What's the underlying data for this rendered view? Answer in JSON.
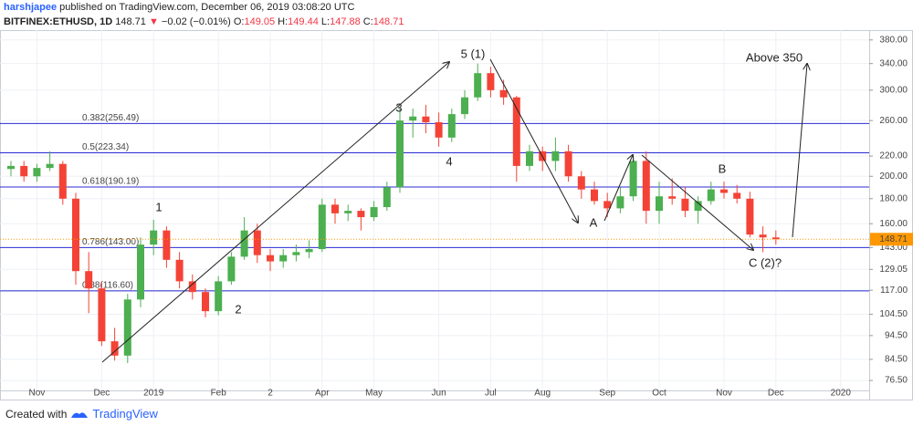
{
  "header": {
    "author": "harshjapee",
    "published": "published on TradingView.com, December 06, 2019 03:08:20 UTC",
    "symbol": "BITFINEX:ETHUSD, 1D",
    "last": "148.71",
    "direction": "▼",
    "change": "−0.02 (−0.01%)",
    "ohlc": [
      {
        "label": "O:",
        "value": "149.05"
      },
      {
        "label": "H:",
        "value": "149.44"
      },
      {
        "label": "L:",
        "value": "147.88"
      },
      {
        "label": "C:",
        "value": "148.71"
      }
    ]
  },
  "footer": {
    "created": "Created with",
    "brand": "TradingView"
  },
  "chart_data": {
    "type": "candlestick",
    "log_scale": true,
    "grid": true,
    "up_color": "#4caf50",
    "down_color": "#f44336",
    "level_color": "#2b2bd6",
    "last_price": {
      "value": 148.71,
      "label": "148.71",
      "color": "#ff9800"
    },
    "ylim": [
      73,
      398
    ],
    "yticks": [
      {
        "value": 380,
        "label": "380.00"
      },
      {
        "value": 340,
        "label": "340.00"
      },
      {
        "value": 300,
        "label": "300.00"
      },
      {
        "value": 260,
        "label": "260.00"
      },
      {
        "value": 220,
        "label": "220.00"
      },
      {
        "value": 200,
        "label": "200.00"
      },
      {
        "value": 180,
        "label": "180.00"
      },
      {
        "value": 160,
        "label": "160.00"
      },
      {
        "value": 143,
        "label": "143.00"
      },
      {
        "value": 129.05,
        "label": "129.05"
      },
      {
        "value": 117,
        "label": "117.00"
      },
      {
        "value": 104.5,
        "label": "104.50"
      },
      {
        "value": 94.5,
        "label": "94.50"
      },
      {
        "value": 84.5,
        "label": "84.50"
      },
      {
        "value": 76.5,
        "label": "76.50"
      }
    ],
    "levels": [
      {
        "value": 256.49,
        "label": "0.382(256.49)"
      },
      {
        "value": 223.34,
        "label": "0.5(223.34)"
      },
      {
        "value": 190.19,
        "label": "0.618(190.19)"
      },
      {
        "value": 143.0,
        "label": "0.786(143.00)"
      },
      {
        "value": 116.6,
        "label": "0.88(116.60)"
      }
    ],
    "annotations": [
      "1",
      "2",
      "3",
      "4",
      "5 (1)",
      "A",
      "B",
      "C (2)?",
      "Above 350"
    ],
    "categories": [
      null,
      null,
      "Nov",
      null,
      null,
      null,
      null,
      "Dec",
      null,
      null,
      null,
      "2019",
      null,
      null,
      null,
      null,
      "Feb",
      null,
      null,
      null,
      "2",
      null,
      null,
      null,
      "Apr",
      null,
      null,
      null,
      "May",
      null,
      null,
      null,
      null,
      "Jun",
      null,
      null,
      null,
      "Jul",
      null,
      null,
      null,
      "Aug",
      null,
      null,
      null,
      null,
      "Sep",
      null,
      null,
      null,
      "Oct",
      null,
      null,
      null,
      null,
      "Nov",
      null,
      null,
      null,
      "Dec",
      null,
      null,
      null,
      null,
      "2020",
      null
    ],
    "open": [
      207,
      210,
      200,
      208,
      212,
      180,
      128,
      118,
      92,
      86,
      112,
      145,
      155,
      135,
      122,
      116,
      106,
      122,
      137,
      155,
      138,
      134,
      138,
      140,
      142,
      175,
      168,
      170,
      165,
      173,
      190,
      260,
      265,
      258,
      240,
      268,
      290,
      325,
      300,
      290,
      210,
      225,
      215,
      225,
      200,
      188,
      178,
      172,
      182,
      215,
      170,
      182,
      180,
      170,
      178,
      188,
      185,
      180,
      152,
      150,
      null,
      null,
      null,
      null,
      null,
      null
    ],
    "high": [
      215,
      215,
      212,
      225,
      215,
      185,
      140,
      122,
      98,
      115,
      150,
      163,
      158,
      140,
      126,
      118,
      125,
      140,
      165,
      160,
      142,
      142,
      145,
      148,
      180,
      180,
      175,
      172,
      178,
      195,
      275,
      275,
      280,
      270,
      275,
      300,
      340,
      335,
      315,
      292,
      232,
      230,
      240,
      232,
      205,
      195,
      185,
      190,
      220,
      225,
      195,
      198,
      190,
      182,
      195,
      195,
      192,
      186,
      158,
      155,
      null,
      null,
      null,
      null,
      null,
      null
    ],
    "low": [
      200,
      195,
      195,
      205,
      175,
      120,
      105,
      90,
      84,
      83,
      108,
      138,
      130,
      118,
      112,
      103,
      104,
      120,
      135,
      133,
      128,
      130,
      134,
      136,
      140,
      160,
      162,
      155,
      162,
      170,
      185,
      240,
      245,
      230,
      235,
      262,
      285,
      290,
      280,
      195,
      205,
      205,
      205,
      195,
      180,
      175,
      165,
      168,
      178,
      160,
      160,
      175,
      165,
      160,
      175,
      180,
      176,
      150,
      140,
      145,
      null,
      null,
      null,
      null,
      null,
      null
    ],
    "close": [
      210,
      200,
      208,
      212,
      180,
      128,
      118,
      92,
      86,
      112,
      145,
      155,
      135,
      122,
      116,
      106,
      122,
      137,
      155,
      138,
      134,
      138,
      140,
      142,
      175,
      168,
      170,
      165,
      173,
      190,
      260,
      265,
      258,
      240,
      268,
      290,
      325,
      300,
      290,
      210,
      225,
      215,
      225,
      200,
      188,
      178,
      172,
      182,
      215,
      170,
      182,
      180,
      170,
      178,
      188,
      185,
      180,
      152,
      150,
      148.71,
      null,
      null,
      null,
      null,
      null,
      null
    ]
  }
}
